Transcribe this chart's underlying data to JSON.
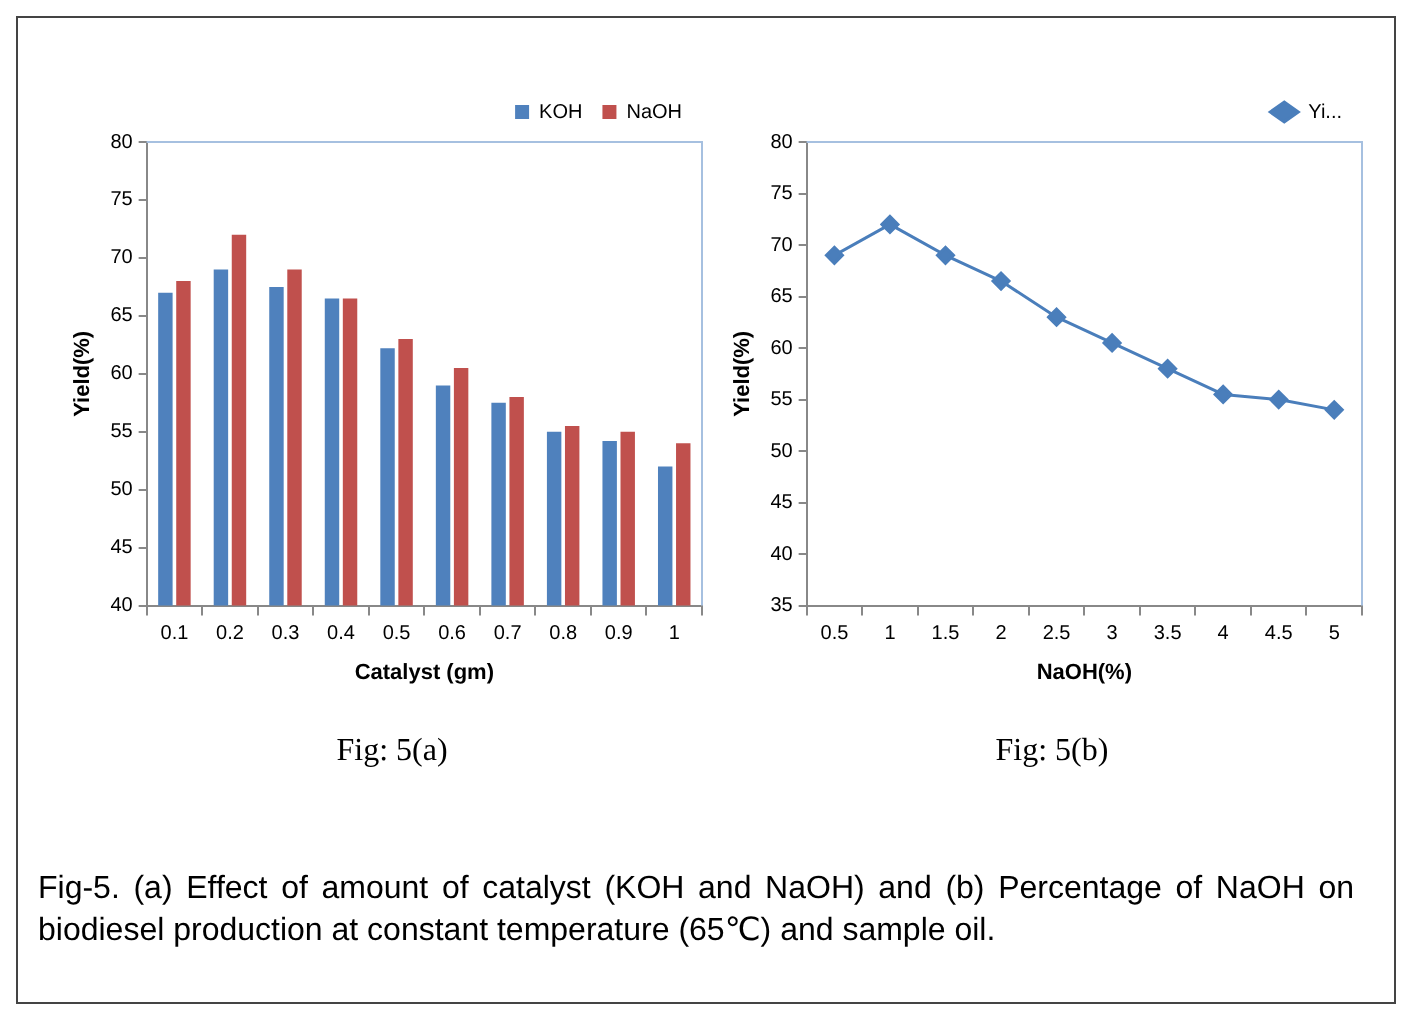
{
  "chart_data": [
    {
      "type": "bar",
      "categories": [
        "0.1",
        "0.2",
        "0.3",
        "0.4",
        "0.5",
        "0.6",
        "0.7",
        "0.8",
        "0.9",
        "1"
      ],
      "xlabel": "Catalyst (gm)",
      "ylabel": "Yield(%)",
      "ylim": [
        40,
        80
      ],
      "yticks": [
        40,
        45,
        50,
        55,
        60,
        65,
        70,
        75,
        80
      ],
      "legend": "top right",
      "annotations": [
        "Fig: 5(a)"
      ],
      "series": [
        {
          "name": "KOH",
          "color": "#4f81bd",
          "values": [
            67,
            69,
            67.5,
            66.5,
            62.2,
            59,
            57.5,
            55,
            54.2,
            52
          ]
        },
        {
          "name": "NaOH",
          "color": "#c0504d",
          "values": [
            68,
            72,
            69,
            66.5,
            63,
            60.5,
            58,
            55.5,
            55,
            54
          ]
        }
      ]
    },
    {
      "type": "line",
      "categories": [
        "0.5",
        "1",
        "1.5",
        "2",
        "2.5",
        "3",
        "3.5",
        "4",
        "4.5",
        "5"
      ],
      "xlabel": "NaOH(%)",
      "ylabel": "Yield(%)",
      "ylim": [
        35,
        80
      ],
      "yticks": [
        35,
        40,
        45,
        50,
        55,
        60,
        65,
        70,
        75,
        80
      ],
      "legend": "top right",
      "marker": "diamond",
      "line_style": "solid",
      "annotations": [
        "Fig: 5(b)",
        "Fig-5. (a) Effect of amount of catalyst (KOH and NaOH) and (b) Percentage of NaOH on biodiesel production at constant temperature (65℃) and sample oil."
      ],
      "series": [
        {
          "name": "Yi...",
          "color": "#4a7ebb",
          "values": [
            69,
            72,
            69,
            66.5,
            63,
            60.5,
            58,
            55.5,
            55,
            54
          ]
        }
      ]
    }
  ]
}
